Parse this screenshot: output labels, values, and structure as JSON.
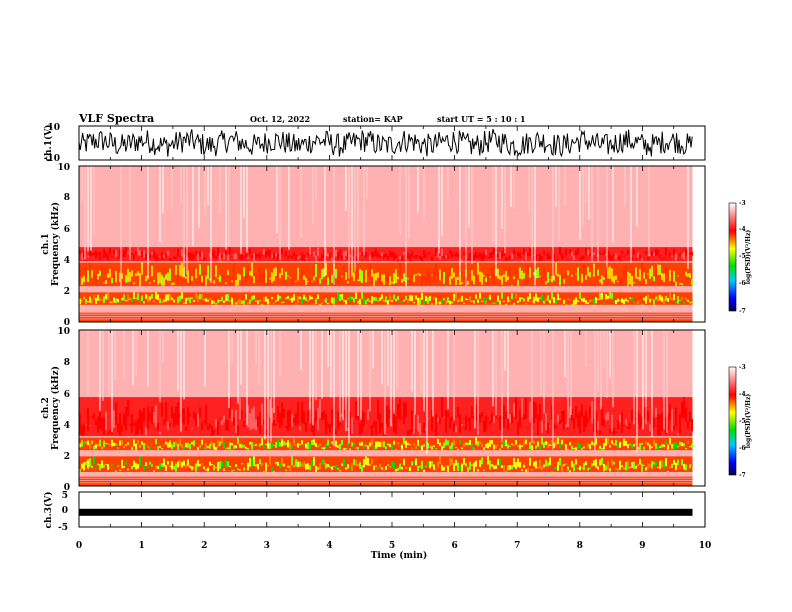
{
  "header": {
    "title": "VLF Spectra",
    "date": "Oct. 12, 2022",
    "station": "station= KAP",
    "start": "start  UT =   5 : 10 : 1"
  },
  "chart_data": [
    {
      "type": "line",
      "ylabel": "ch.1(V)",
      "ylim": [
        -10,
        10
      ],
      "yticks": [
        "10",
        "-10"
      ],
      "x_range_min": [
        0,
        9.8
      ]
    },
    {
      "type": "heatmap",
      "ylabel_line1": "ch.1",
      "ylabel_line2": "Frequency (kHz)",
      "ylim": [
        0,
        10
      ],
      "yticks": [
        "0",
        "2",
        "4",
        "6",
        "8",
        "10"
      ],
      "colorbar": {
        "label": "log(PSD)(V²/Hz)",
        "ticks": [
          "-3",
          "-4",
          "-5",
          "-6",
          "-7"
        ],
        "range": [
          -7,
          -3
        ]
      },
      "bands_khz": [
        {
          "lo": 1.1,
          "hi": 1.9,
          "level": "green-yellow"
        },
        {
          "lo": 2.3,
          "hi": 3.8,
          "level": "yellow-orange"
        },
        {
          "lo": 3.9,
          "hi": 4.8,
          "level": "red"
        }
      ]
    },
    {
      "type": "heatmap",
      "ylabel_line1": "ch.2",
      "ylabel_line2": "Frequency (kHz)",
      "ylim": [
        0,
        10
      ],
      "yticks": [
        "0",
        "2",
        "4",
        "6",
        "8",
        "10"
      ],
      "colorbar": {
        "label": "log(PSD)(V²/Hz)",
        "ticks": [
          "-3",
          "-4",
          "-5",
          "-6",
          "-7"
        ],
        "range": [
          -7,
          -3
        ]
      },
      "bands_khz": [
        {
          "lo": 0.9,
          "hi": 1.9,
          "level": "green-yellow"
        },
        {
          "lo": 2.3,
          "hi": 3.1,
          "level": "green-yellow"
        },
        {
          "lo": 3.2,
          "hi": 5.7,
          "level": "red"
        }
      ]
    },
    {
      "type": "line",
      "ylabel": "ch.3(V)",
      "ylim": [
        -5,
        5
      ],
      "yticks": [
        "5",
        "0",
        "-5"
      ],
      "level_v": -0.8
    }
  ],
  "xaxis": {
    "label": "Time (min)",
    "ticks": [
      "0",
      "1",
      "2",
      "3",
      "4",
      "5",
      "6",
      "7",
      "8",
      "9",
      "10"
    ],
    "range": [
      0,
      10
    ]
  }
}
